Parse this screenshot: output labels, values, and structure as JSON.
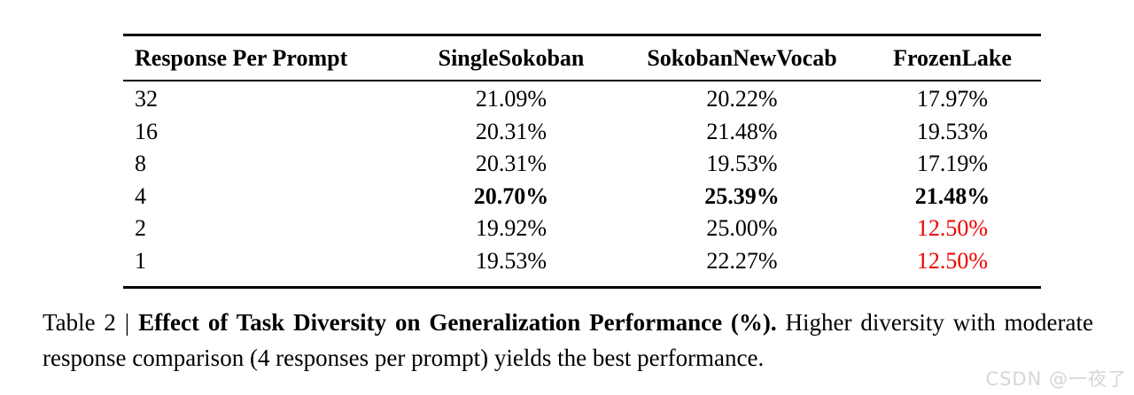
{
  "table": {
    "columns": [
      "Response Per Prompt",
      "SingleSokoban",
      "SokobanNewVocab",
      "FrozenLake"
    ],
    "rows": [
      {
        "cells": [
          "32",
          "21.09%",
          "20.22%",
          "17.97%"
        ]
      },
      {
        "cells": [
          "16",
          "20.31%",
          "21.48%",
          "19.53%"
        ]
      },
      {
        "cells": [
          "8",
          "20.31%",
          "19.53%",
          "17.19%"
        ]
      },
      {
        "cells": [
          "4",
          "20.70%",
          "25.39%",
          "21.48%"
        ]
      },
      {
        "cells": [
          "2",
          "19.92%",
          "25.00%",
          "12.50%"
        ]
      },
      {
        "cells": [
          "1",
          "19.53%",
          "22.27%",
          "12.50%"
        ]
      }
    ],
    "emphasis": {
      "bold_row_index": 3,
      "red_cells": [
        [
          4,
          3
        ],
        [
          5,
          3
        ]
      ]
    }
  },
  "caption": {
    "label": "Table 2",
    "separator": "|",
    "bold_text": "Effect of Task Diversity on Generalization Performance (%).",
    "normal_text": "Higher diversity with moderate response comparison (4 responses per prompt) yields the best performance."
  },
  "watermark": {
    "text": "CSDN @一夜了"
  },
  "colors": {
    "text": "#000000",
    "rule": "#000000",
    "highlight_red": "#ee0000",
    "watermark_gray": "#d6d6d6"
  }
}
